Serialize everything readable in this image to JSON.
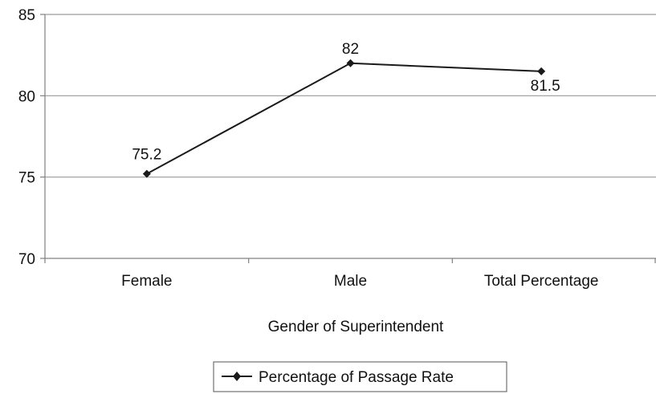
{
  "chart_data": {
    "type": "line",
    "categories": [
      "Female",
      "Male",
      "Total Percentage"
    ],
    "series": [
      {
        "name": "Percentage of Passage Rate",
        "values": [
          75.2,
          82,
          81.5
        ],
        "labels": [
          "75.2",
          "82",
          "81.5"
        ]
      }
    ],
    "xlabel": "Gender of Superintendent",
    "ylabel": "",
    "ylim": [
      70,
      85
    ],
    "yticks": [
      70,
      75,
      80,
      85
    ],
    "grid": true,
    "legend": "bottom-center",
    "colors": {
      "line": "#1a1a1a",
      "grid": "#9a9a9a",
      "axis": "#808080"
    }
  }
}
